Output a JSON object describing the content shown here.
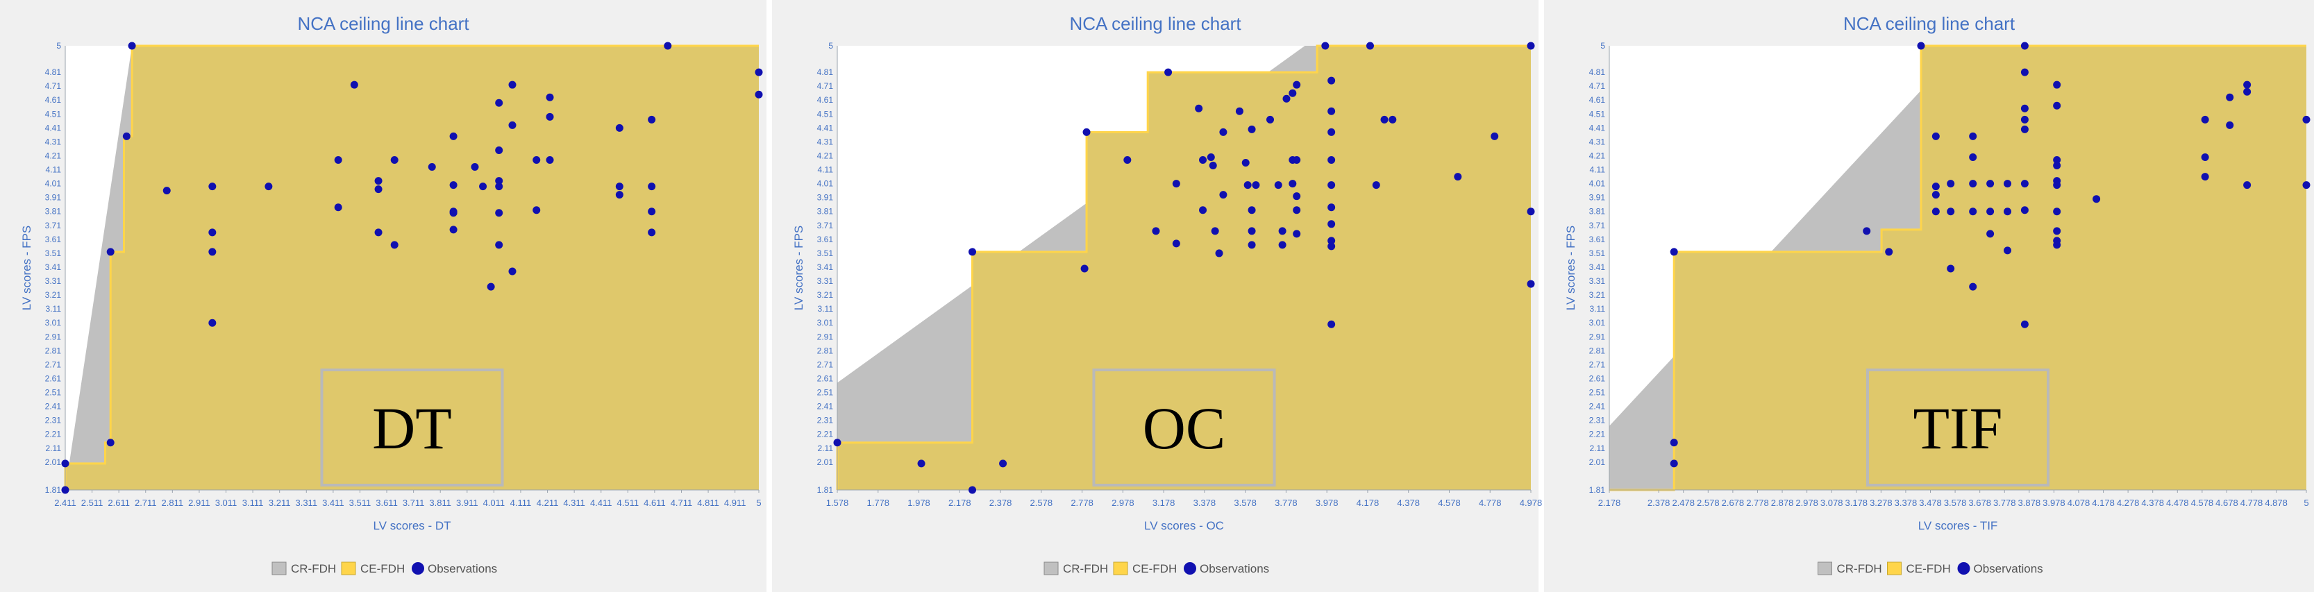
{
  "legend": {
    "cr_fdh": "CR-FDH",
    "ce_fdh": "CE-FDH",
    "observations": "Observations"
  },
  "colors": {
    "panel_bg": "#f0f0f0",
    "ce_fdh": "#dfc86b",
    "cr_fdh": "#c0c0c0",
    "ceiling_line": "#ffd54a",
    "points": "#1010b0",
    "axis_text": "#4472c4",
    "label_box": "#b9b9b9"
  },
  "chart_data": [
    {
      "type": "scatter",
      "title": "NCA ceiling line chart",
      "xlabel": "LV scores - DT",
      "ylabel": "LV scores - FPS",
      "label": "DT",
      "xlim": [
        2.411,
        5
      ],
      "ylim": [
        1.81,
        5
      ],
      "xticks": [
        2.411,
        2.511,
        2.611,
        2.711,
        2.811,
        2.911,
        3.011,
        3.111,
        3.211,
        3.311,
        3.411,
        3.511,
        3.611,
        3.711,
        3.811,
        3.911,
        4.011,
        4.111,
        4.211,
        4.311,
        4.411,
        4.511,
        4.611,
        4.711,
        4.811,
        4.911,
        5
      ],
      "xtick_labels": [
        "2.411",
        "2.511",
        "2.611",
        "2.711",
        "2.811",
        "2.911",
        "3.011",
        "3.111",
        "3.211",
        "3.311",
        "3.411",
        "3.511",
        "3.611",
        "3.711",
        "3.811",
        "3.911",
        "4.011",
        "4.111",
        "4.211",
        "4.311",
        "4.411",
        "4.511",
        "4.611",
        "4.711",
        "4.811",
        "4.911",
        "5"
      ],
      "yticks": [
        1.81,
        2.01,
        2.11,
        2.21,
        2.31,
        2.41,
        2.51,
        2.61,
        2.71,
        2.81,
        2.91,
        3.01,
        3.11,
        3.21,
        3.31,
        3.41,
        3.51,
        3.61,
        3.71,
        3.81,
        3.91,
        4.01,
        4.11,
        4.21,
        4.31,
        4.41,
        4.51,
        4.61,
        4.71,
        4.81,
        5
      ],
      "ytick_labels": [
        "1.81",
        "2.01",
        "2.11",
        "2.21",
        "2.31",
        "2.41",
        "2.51",
        "2.61",
        "2.71",
        "2.81",
        "2.91",
        "3.01",
        "3.11",
        "3.21",
        "3.31",
        "3.41",
        "3.51",
        "3.61",
        "3.71",
        "3.81",
        "3.91",
        "4.01",
        "4.11",
        "4.21",
        "4.31",
        "4.41",
        "4.51",
        "4.61",
        "4.71",
        "4.81",
        "5"
      ],
      "ce_fdh_step": [
        [
          2.411,
          1.81
        ],
        [
          2.411,
          2.0
        ],
        [
          2.56,
          2.0
        ],
        [
          2.56,
          2.15
        ],
        [
          2.58,
          2.15
        ],
        [
          2.58,
          3.52
        ],
        [
          2.63,
          3.52
        ],
        [
          2.63,
          4.35
        ],
        [
          2.66,
          4.35
        ],
        [
          2.66,
          5.0
        ],
        [
          5.0,
          5.0
        ]
      ],
      "cr_fdh_line": [
        [
          2.411,
          1.81
        ],
        [
          2.66,
          5.0
        ]
      ],
      "points": [
        [
          2.411,
          1.81
        ],
        [
          2.411,
          2.0
        ],
        [
          2.58,
          2.15
        ],
        [
          2.58,
          3.52
        ],
        [
          2.64,
          4.35
        ],
        [
          2.66,
          5.0
        ],
        [
          2.79,
          3.96
        ],
        [
          2.96,
          3.99
        ],
        [
          2.96,
          3.66
        ],
        [
          2.96,
          3.52
        ],
        [
          2.96,
          3.01
        ],
        [
          3.17,
          3.99
        ],
        [
          3.43,
          4.18
        ],
        [
          3.43,
          3.84
        ],
        [
          3.49,
          4.72
        ],
        [
          3.58,
          4.03
        ],
        [
          3.58,
          3.97
        ],
        [
          3.58,
          3.66
        ],
        [
          3.64,
          4.18
        ],
        [
          3.64,
          3.57
        ],
        [
          3.78,
          4.13
        ],
        [
          3.86,
          4.35
        ],
        [
          3.86,
          4.0
        ],
        [
          3.86,
          3.81
        ],
        [
          3.86,
          3.8
        ],
        [
          3.86,
          3.68
        ],
        [
          3.94,
          4.13
        ],
        [
          3.97,
          3.99
        ],
        [
          4.0,
          3.27
        ],
        [
          4.03,
          4.59
        ],
        [
          4.03,
          4.25
        ],
        [
          4.03,
          4.03
        ],
        [
          4.03,
          3.99
        ],
        [
          4.03,
          3.8
        ],
        [
          4.03,
          3.57
        ],
        [
          4.08,
          4.72
        ],
        [
          4.08,
          4.43
        ],
        [
          4.08,
          3.38
        ],
        [
          4.17,
          4.18
        ],
        [
          4.17,
          3.82
        ],
        [
          4.22,
          4.63
        ],
        [
          4.22,
          4.49
        ],
        [
          4.22,
          4.18
        ],
        [
          4.48,
          4.41
        ],
        [
          4.48,
          3.99
        ],
        [
          4.48,
          3.93
        ],
        [
          4.6,
          4.47
        ],
        [
          4.6,
          3.99
        ],
        [
          4.6,
          3.81
        ],
        [
          4.6,
          3.66
        ],
        [
          4.66,
          5.0
        ],
        [
          5.0,
          4.81
        ],
        [
          5.0,
          4.65
        ]
      ]
    },
    {
      "type": "scatter",
      "title": "NCA ceiling line chart",
      "xlabel": "LV scores - OC",
      "ylabel": "LV scores - FPS",
      "label": "OC",
      "xlim": [
        1.578,
        4.978
      ],
      "ylim": [
        1.81,
        5
      ],
      "xticks": [
        1.578,
        1.778,
        1.978,
        2.178,
        2.378,
        2.578,
        2.778,
        2.978,
        3.178,
        3.378,
        3.578,
        3.778,
        3.978,
        4.178,
        4.378,
        4.578,
        4.778,
        4.978
      ],
      "xtick_labels": [
        "1.578",
        "1.778",
        "1.978",
        "2.178",
        "2.378",
        "2.578",
        "2.778",
        "2.978",
        "3.178",
        "3.378",
        "3.578",
        "3.778",
        "3.978",
        "4.178",
        "4.378",
        "4.578",
        "4.778",
        "4.978"
      ],
      "yticks": [
        1.81,
        2.01,
        2.11,
        2.21,
        2.31,
        2.41,
        2.51,
        2.61,
        2.71,
        2.81,
        2.91,
        3.01,
        3.11,
        3.21,
        3.31,
        3.41,
        3.51,
        3.61,
        3.71,
        3.81,
        3.91,
        4.01,
        4.11,
        4.21,
        4.31,
        4.41,
        4.51,
        4.61,
        4.71,
        4.81,
        5
      ],
      "ytick_labels": [
        "1.81",
        "2.01",
        "2.11",
        "2.21",
        "2.31",
        "2.41",
        "2.51",
        "2.61",
        "2.71",
        "2.81",
        "2.91",
        "3.01",
        "3.11",
        "3.21",
        "3.31",
        "3.41",
        "3.51",
        "3.61",
        "3.71",
        "3.81",
        "3.91",
        "4.01",
        "4.11",
        "4.21",
        "4.31",
        "4.41",
        "4.51",
        "4.61",
        "4.71",
        "4.81",
        "5"
      ],
      "ce_fdh_step": [
        [
          1.578,
          1.81
        ],
        [
          1.578,
          2.15
        ],
        [
          2.24,
          2.15
        ],
        [
          2.24,
          3.52
        ],
        [
          2.8,
          3.52
        ],
        [
          2.8,
          4.38
        ],
        [
          3.1,
          4.38
        ],
        [
          3.1,
          4.81
        ],
        [
          3.93,
          4.81
        ],
        [
          3.93,
          5.0
        ],
        [
          4.978,
          5.0
        ]
      ],
      "cr_fdh_line": [
        [
          1.578,
          2.58
        ],
        [
          3.87,
          5.0
        ]
      ],
      "points": [
        [
          1.578,
          2.15
        ],
        [
          1.99,
          2.0
        ],
        [
          2.24,
          1.81
        ],
        [
          2.24,
          3.52
        ],
        [
          2.39,
          2.0
        ],
        [
          2.79,
          3.4
        ],
        [
          2.8,
          4.38
        ],
        [
          3.0,
          4.18
        ],
        [
          3.14,
          3.67
        ],
        [
          3.2,
          4.81
        ],
        [
          3.24,
          4.01
        ],
        [
          3.24,
          3.58
        ],
        [
          3.35,
          4.55
        ],
        [
          3.37,
          4.18
        ],
        [
          3.37,
          3.82
        ],
        [
          3.41,
          4.2
        ],
        [
          3.42,
          4.14
        ],
        [
          3.43,
          3.67
        ],
        [
          3.45,
          3.51
        ],
        [
          3.47,
          4.38
        ],
        [
          3.47,
          3.93
        ],
        [
          3.55,
          4.53
        ],
        [
          3.58,
          4.16
        ],
        [
          3.59,
          4.0
        ],
        [
          3.61,
          4.4
        ],
        [
          3.61,
          3.82
        ],
        [
          3.61,
          3.67
        ],
        [
          3.61,
          3.57
        ],
        [
          3.63,
          4.0
        ],
        [
          3.7,
          4.47
        ],
        [
          3.74,
          4.0
        ],
        [
          3.76,
          3.67
        ],
        [
          3.76,
          3.57
        ],
        [
          3.78,
          4.62
        ],
        [
          3.81,
          4.18
        ],
        [
          3.81,
          4.01
        ],
        [
          3.81,
          4.66
        ],
        [
          3.83,
          4.72
        ],
        [
          3.83,
          3.92
        ],
        [
          3.83,
          3.82
        ],
        [
          3.83,
          3.65
        ],
        [
          3.83,
          4.18
        ],
        [
          3.97,
          5.0
        ],
        [
          4.0,
          4.75
        ],
        [
          4.0,
          4.53
        ],
        [
          4.0,
          4.38
        ],
        [
          4.0,
          4.18
        ],
        [
          4.0,
          4.0
        ],
        [
          4.0,
          3.84
        ],
        [
          4.0,
          3.72
        ],
        [
          4.0,
          3.6
        ],
        [
          4.0,
          3.56
        ],
        [
          4.0,
          3.0
        ],
        [
          4.19,
          5.0
        ],
        [
          4.22,
          4.0
        ],
        [
          4.26,
          4.47
        ],
        [
          4.3,
          4.47
        ],
        [
          4.62,
          4.06
        ],
        [
          4.8,
          4.35
        ],
        [
          4.978,
          3.81
        ],
        [
          4.978,
          3.29
        ],
        [
          4.978,
          5.0
        ]
      ]
    },
    {
      "type": "scatter",
      "title": "NCA ceiling line chart",
      "xlabel": "LV scores - TIF",
      "ylabel": "LV scores - FPS",
      "label": "TIF",
      "xlim": [
        2.178,
        5
      ],
      "ylim": [
        1.81,
        5
      ],
      "xticks": [
        2.178,
        2.378,
        2.478,
        2.578,
        2.678,
        2.778,
        2.878,
        2.978,
        3.078,
        3.178,
        3.278,
        3.378,
        3.478,
        3.578,
        3.678,
        3.778,
        3.878,
        3.978,
        4.078,
        4.178,
        4.278,
        4.378,
        4.478,
        4.578,
        4.678,
        4.778,
        4.878,
        5
      ],
      "xtick_labels": [
        "2.178",
        "2.378",
        "2.478",
        "2.578",
        "2.678",
        "2.778",
        "2.878",
        "2.978",
        "3.078",
        "3.178",
        "3.278",
        "3.378",
        "3.478",
        "3.578",
        "3.678",
        "3.778",
        "3.878",
        "3.978",
        "4.078",
        "4.178",
        "4.278",
        "4.378",
        "4.478",
        "4.578",
        "4.678",
        "4.778",
        "4.878",
        "5"
      ],
      "yticks": [
        1.81,
        2.01,
        2.11,
        2.21,
        2.31,
        2.41,
        2.51,
        2.61,
        2.71,
        2.81,
        2.91,
        3.01,
        3.11,
        3.21,
        3.31,
        3.41,
        3.51,
        3.61,
        3.71,
        3.81,
        3.91,
        4.01,
        4.11,
        4.21,
        4.31,
        4.41,
        4.51,
        4.61,
        4.71,
        4.81,
        5
      ],
      "ytick_labels": [
        "1.81",
        "2.01",
        "2.11",
        "2.21",
        "2.31",
        "2.41",
        "2.51",
        "2.61",
        "2.71",
        "2.81",
        "2.91",
        "3.01",
        "3.11",
        "3.21",
        "3.31",
        "3.41",
        "3.51",
        "3.61",
        "3.71",
        "3.81",
        "3.91",
        "4.01",
        "4.11",
        "4.21",
        "4.31",
        "4.41",
        "4.51",
        "4.61",
        "4.71",
        "4.81",
        "5"
      ],
      "ce_fdh_step": [
        [
          2.178,
          1.81
        ],
        [
          2.44,
          1.81
        ],
        [
          2.44,
          3.52
        ],
        [
          3.28,
          3.52
        ],
        [
          3.28,
          3.68
        ],
        [
          3.44,
          3.68
        ],
        [
          3.44,
          5.0
        ],
        [
          5.0,
          5.0
        ]
      ],
      "cr_fdh_line": [
        [
          2.178,
          2.27
        ],
        [
          3.44,
          4.68
        ]
      ],
      "points": [
        [
          2.44,
          2.15
        ],
        [
          2.44,
          2.0
        ],
        [
          2.44,
          3.52
        ],
        [
          3.22,
          3.67
        ],
        [
          3.31,
          3.52
        ],
        [
          3.44,
          5.0
        ],
        [
          3.5,
          3.99
        ],
        [
          3.5,
          3.93
        ],
        [
          3.5,
          4.35
        ],
        [
          3.5,
          3.81
        ],
        [
          3.56,
          4.01
        ],
        [
          3.56,
          3.81
        ],
        [
          3.56,
          3.4
        ],
        [
          3.65,
          4.35
        ],
        [
          3.65,
          4.2
        ],
        [
          3.65,
          4.01
        ],
        [
          3.65,
          3.81
        ],
        [
          3.65,
          3.27
        ],
        [
          3.72,
          4.01
        ],
        [
          3.72,
          3.81
        ],
        [
          3.72,
          3.65
        ],
        [
          3.79,
          4.01
        ],
        [
          3.79,
          3.81
        ],
        [
          3.79,
          3.53
        ],
        [
          3.86,
          5.0
        ],
        [
          3.86,
          4.81
        ],
        [
          3.86,
          4.55
        ],
        [
          3.86,
          4.47
        ],
        [
          3.86,
          4.4
        ],
        [
          3.86,
          4.01
        ],
        [
          3.86,
          3.82
        ],
        [
          3.86,
          3.0
        ],
        [
          3.99,
          4.72
        ],
        [
          3.99,
          4.57
        ],
        [
          3.99,
          4.18
        ],
        [
          3.99,
          4.14
        ],
        [
          3.99,
          4.03
        ],
        [
          3.99,
          4.0
        ],
        [
          3.99,
          3.81
        ],
        [
          3.99,
          3.67
        ],
        [
          3.99,
          3.6
        ],
        [
          3.99,
          3.57
        ],
        [
          4.15,
          3.9
        ],
        [
          4.59,
          4.47
        ],
        [
          4.59,
          4.2
        ],
        [
          4.59,
          4.06
        ],
        [
          4.69,
          4.63
        ],
        [
          4.69,
          4.43
        ],
        [
          4.76,
          4.72
        ],
        [
          4.76,
          4.67
        ],
        [
          4.76,
          4.0
        ],
        [
          5.0,
          4.47
        ],
        [
          5.0,
          4.0
        ]
      ]
    }
  ]
}
